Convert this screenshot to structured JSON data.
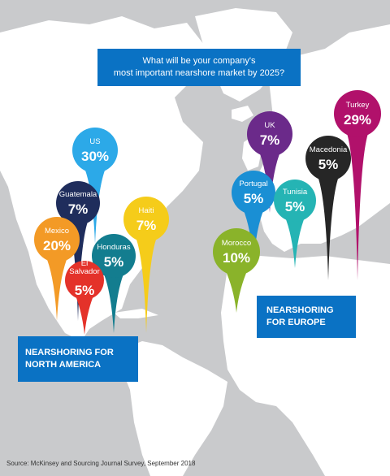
{
  "question": {
    "line1": "What will be your company's",
    "line2": "most important nearshore market by 2025?"
  },
  "north_america_label": {
    "line1": "NEARSHORING FOR",
    "line2": "NORTH AMERICA"
  },
  "europe_label": {
    "line1": "NEARSHORING",
    "line2": "FOR EUROPE"
  },
  "source": "Source: McKinsey and Sourcing Journal Survey, September 2018",
  "colors": {
    "ocean": "#c9cacc",
    "land": "#ffffff",
    "callout": "#0a72c4"
  },
  "markets": [
    {
      "key": "us",
      "name": "US",
      "value": "30%",
      "color": "#2ca9e8"
    },
    {
      "key": "guatemala",
      "name": "Guatemala",
      "value": "7%",
      "color": "#1f2d5c"
    },
    {
      "key": "haiti",
      "name": "Haiti",
      "value": "7%",
      "color": "#f5cc1a"
    },
    {
      "key": "mexico",
      "name": "Mexico",
      "value": "20%",
      "color": "#f39a26"
    },
    {
      "key": "honduras",
      "name": "Honduras",
      "value": "5%",
      "color": "#137d8f"
    },
    {
      "key": "el-salvador",
      "name": "El Salvador",
      "value": "5%",
      "name_lines": [
        "El",
        "Salvador"
      ],
      "color": "#e4322a"
    },
    {
      "key": "uk",
      "name": "UK",
      "value": "7%",
      "color": "#6b2a8a"
    },
    {
      "key": "turkey",
      "name": "Turkey",
      "value": "29%",
      "color": "#b1116b"
    },
    {
      "key": "macedonia",
      "name": "Macedonia",
      "value": "5%",
      "color": "#262626"
    },
    {
      "key": "portugal",
      "name": "Portugal",
      "value": "5%",
      "color": "#1a8fd4"
    },
    {
      "key": "tunisia",
      "name": "Tunisia",
      "value": "5%",
      "color": "#25b4b4"
    },
    {
      "key": "morocco",
      "name": "Morocco",
      "value": "10%",
      "color": "#8ab32a"
    }
  ]
}
